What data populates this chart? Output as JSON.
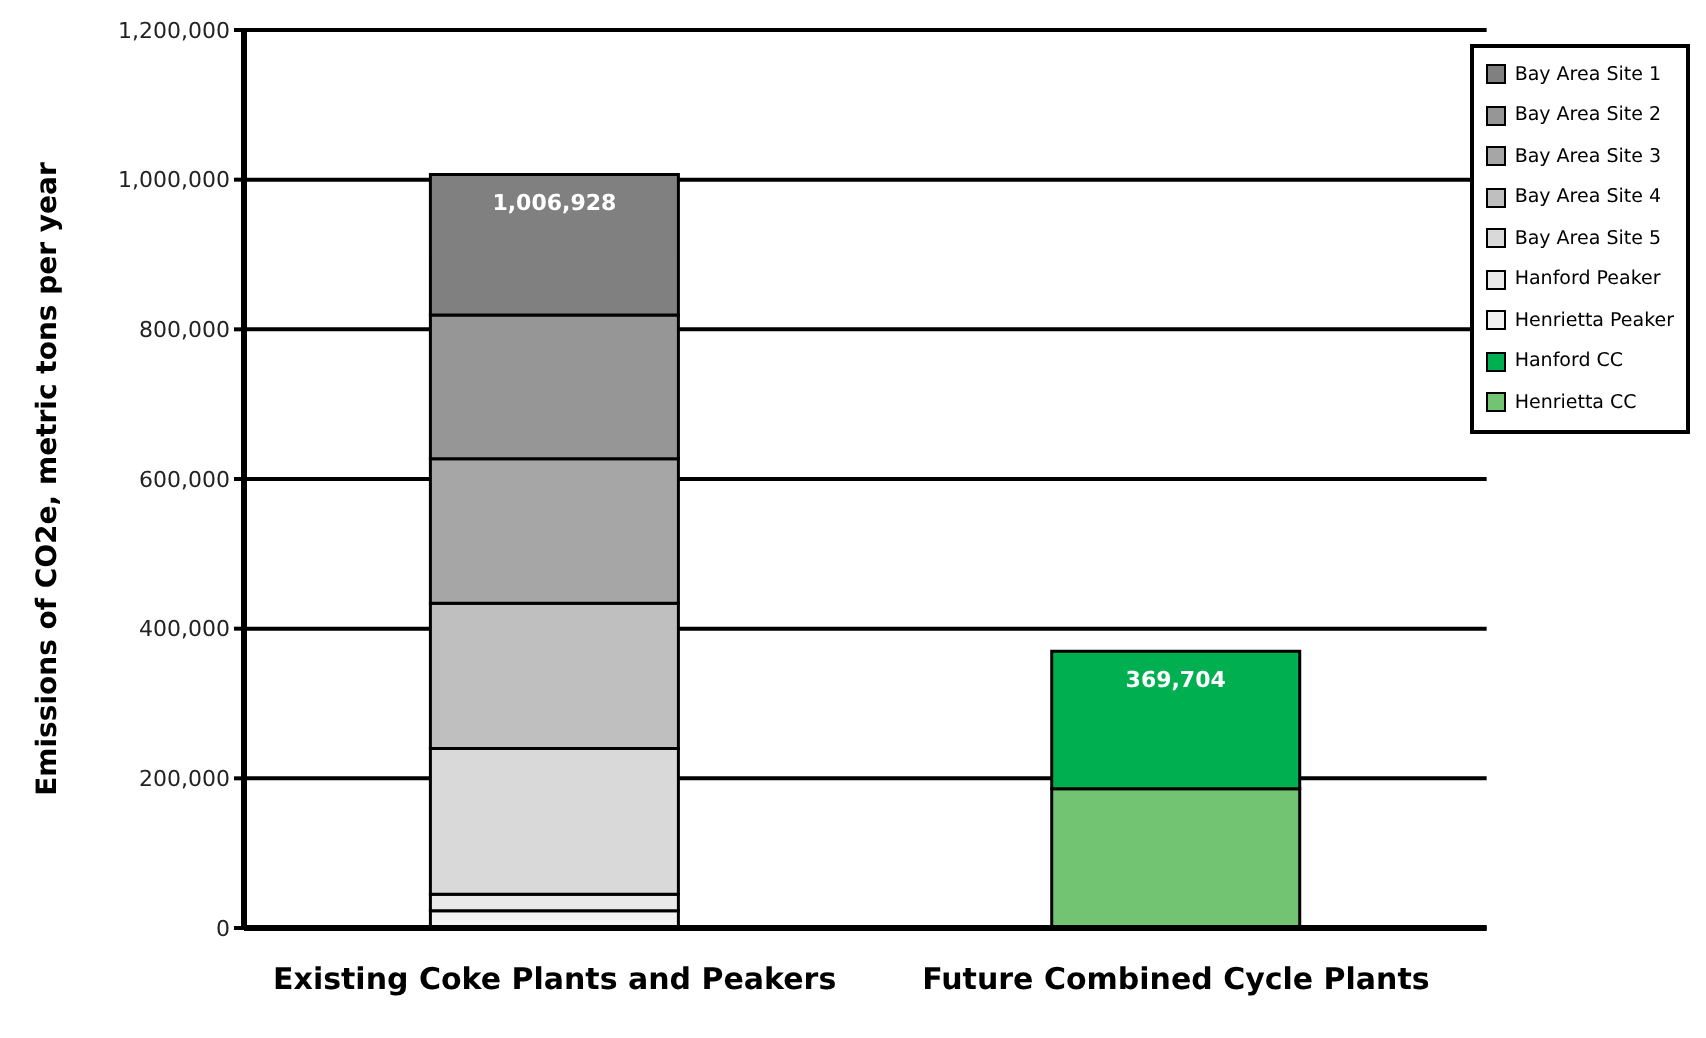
{
  "chart_data": {
    "type": "bar",
    "stacked": true,
    "ylabel": "Emissions of CO2e, metric tons per year",
    "categories": [
      "Existing Coke Plants and Peakers",
      "Future Combined Cycle Plants"
    ],
    "series": [
      {
        "name": "Henrietta CC",
        "color": "#72c472",
        "values": [
          null,
          186000
        ]
      },
      {
        "name": "Hanford CC",
        "color": "#00b050",
        "values": [
          null,
          183704
        ]
      },
      {
        "name": "Henrietta Peaker",
        "color": "#f2f2f2",
        "values": [
          23000,
          null
        ]
      },
      {
        "name": "Hanford Peaker",
        "color": "#eaeaea",
        "values": [
          22000,
          null
        ]
      },
      {
        "name": "Bay Area Site 5",
        "color": "#d9d9d9",
        "values": [
          195000,
          null
        ]
      },
      {
        "name": "Bay Area Site 4",
        "color": "#bfbfbf",
        "values": [
          194000,
          null
        ]
      },
      {
        "name": "Bay Area Site 3",
        "color": "#a6a6a6",
        "values": [
          193000,
          null
        ]
      },
      {
        "name": "Bay Area Site 2",
        "color": "#969696",
        "values": [
          192000,
          null
        ]
      },
      {
        "name": "Bay Area Site 1",
        "color": "#808080",
        "values": [
          187928,
          null
        ]
      }
    ],
    "totals": [
      "1,006,928",
      "369,704"
    ],
    "ylim": [
      0,
      1200000
    ],
    "yticks": [
      0,
      {
        "value": 200000,
        "label": "200,000"
      },
      {
        "value": 400000,
        "label": "400,000"
      },
      {
        "value": 600000,
        "label": "600,000"
      },
      {
        "value": 800000,
        "label": "800,000"
      },
      {
        "value": 1000000,
        "label": "1,000,000"
      },
      {
        "value": 1200000,
        "label": "1,200,000"
      }
    ],
    "grid": "y",
    "legend": "top right"
  }
}
